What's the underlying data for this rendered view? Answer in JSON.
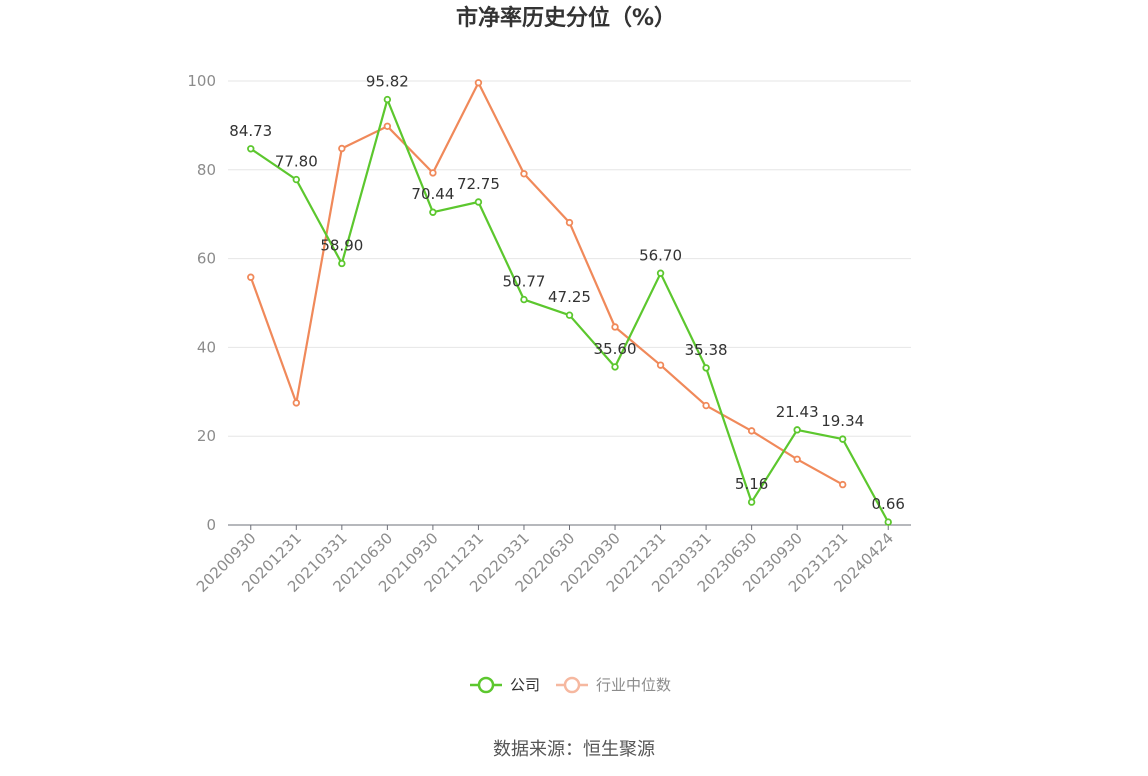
{
  "chart_data": {
    "type": "line",
    "title": "市净率历史分位（%）",
    "categories": [
      "20200930",
      "20201231",
      "20210331",
      "20210630",
      "20210930",
      "20211231",
      "20220331",
      "20220630",
      "20220930",
      "20221231",
      "20230331",
      "20230630",
      "20230930",
      "20231231",
      "20240424"
    ],
    "ylim": [
      0,
      100
    ],
    "y_ticks": [
      0,
      20,
      40,
      60,
      80,
      100
    ],
    "grid": true,
    "legend_position": "bottom-center",
    "series": [
      {
        "name": "公司",
        "color": "#5cc72e",
        "values": [
          84.73,
          77.8,
          58.9,
          95.82,
          70.44,
          72.75,
          50.77,
          47.25,
          35.6,
          56.7,
          35.38,
          5.16,
          21.43,
          19.34,
          0.66
        ],
        "labels": [
          "84.73",
          "77.80",
          "58.90",
          "95.82",
          "70.44",
          "72.75",
          "50.77",
          "47.25",
          "35.60",
          "56.70",
          "35.38",
          "5.16",
          "21.43",
          "19.34",
          "0.66"
        ]
      },
      {
        "name": "行业中位数",
        "color": "#f0895a",
        "legend_color": "#f6b8a0",
        "values": [
          55.8,
          27.5,
          84.8,
          89.8,
          79.3,
          99.6,
          79.1,
          68.1,
          44.6,
          36.0,
          26.9,
          21.2,
          14.8,
          9.1,
          null
        ]
      }
    ]
  },
  "footer": {
    "source": "数据来源：恒生聚源"
  }
}
